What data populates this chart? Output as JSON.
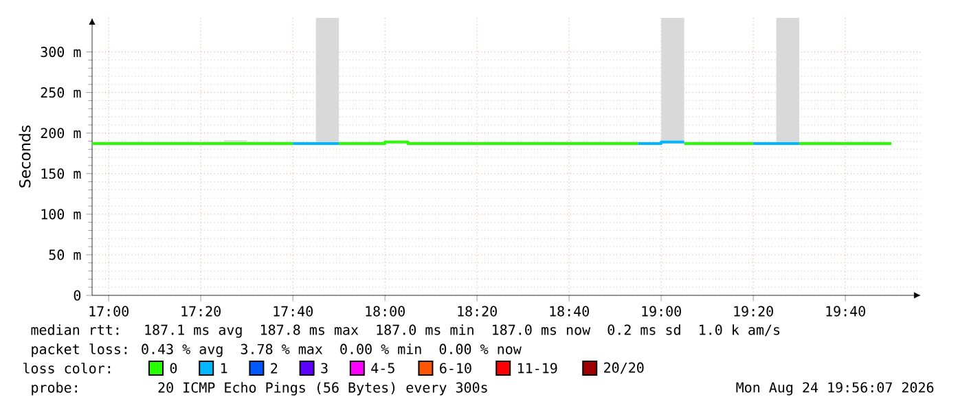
{
  "chart_data": {
    "type": "step",
    "ylabel": "Seconds",
    "xlim": [
      16.94,
      19.94
    ],
    "ylim": [
      0,
      342
    ],
    "xticks": [
      {
        "value": 17.0,
        "label": "17:00"
      },
      {
        "value": 17.3333,
        "label": "17:20"
      },
      {
        "value": 17.6667,
        "label": "17:40"
      },
      {
        "value": 18.0,
        "label": "18:00"
      },
      {
        "value": 18.3333,
        "label": "18:20"
      },
      {
        "value": 18.6667,
        "label": "18:40"
      },
      {
        "value": 19.0,
        "label": "19:00"
      },
      {
        "value": 19.3333,
        "label": "19:20"
      },
      {
        "value": 19.6667,
        "label": "19:40"
      }
    ],
    "yticks": [
      0,
      {
        "value": 50,
        "label": "50 m"
      },
      {
        "value": 100,
        "label": "100 m"
      },
      {
        "value": 150,
        "label": "150 m"
      },
      {
        "value": 200,
        "label": "200 m"
      },
      {
        "value": 250,
        "label": "250 m"
      },
      {
        "value": 300,
        "label": "300 m"
      }
    ],
    "grid": true,
    "legend": "bottom",
    "legend_title": "loss color:",
    "series": [
      {
        "type": "bar",
        "color": "#d9d9d9",
        "x": [
          17.4583,
          17.7917,
          19.0417,
          19.4583
        ],
        "base": [
          187,
          187,
          187,
          187
        ],
        "values": [
          4,
          155,
          155,
          155
        ]
      },
      {
        "name": "0",
        "color": "#26ff00",
        "x": [
          16.94,
          17.6667,
          17.75,
          17.8333,
          18.0,
          18.0833,
          18.9167,
          19.0,
          19.0833,
          19.3333,
          19.4,
          19.5,
          19.8333
        ],
        "values": [
          187,
          187,
          null,
          187,
          189,
          187,
          187,
          null,
          187,
          187,
          null,
          187,
          187
        ]
      },
      {
        "name": "1",
        "color": "#00b8ff",
        "x": [
          17.6667,
          17.8333,
          17.9,
          18.9167,
          19.0,
          19.0833,
          19.2,
          19.3333,
          19.5
        ],
        "values": [
          187,
          187,
          null,
          187,
          189,
          189,
          null,
          187,
          187
        ]
      },
      {
        "name": "2",
        "color": "#0059ff"
      },
      {
        "name": "3",
        "color": "#5e00ff"
      },
      {
        "name": "4-5",
        "color": "#ff00ff"
      },
      {
        "name": "6-10",
        "color": "#ff5500"
      },
      {
        "name": "11-19",
        "color": "#ff0000"
      },
      {
        "name": "20/20",
        "color": "#a10000"
      }
    ],
    "annotations": [
      "median rtt:  187.1 ms avg  187.8 ms max  187.0 ms min  187.0 ms now  0.2 ms sd  1.0 k am/s",
      "packet loss: 0.43 % avg  3.78 % max  0.00 % min  0.00 % now",
      "probe:       20 ICMP Echo Pings (56 Bytes) every 300s",
      "Mon Aug 24 19:56:07 2026"
    ]
  }
}
